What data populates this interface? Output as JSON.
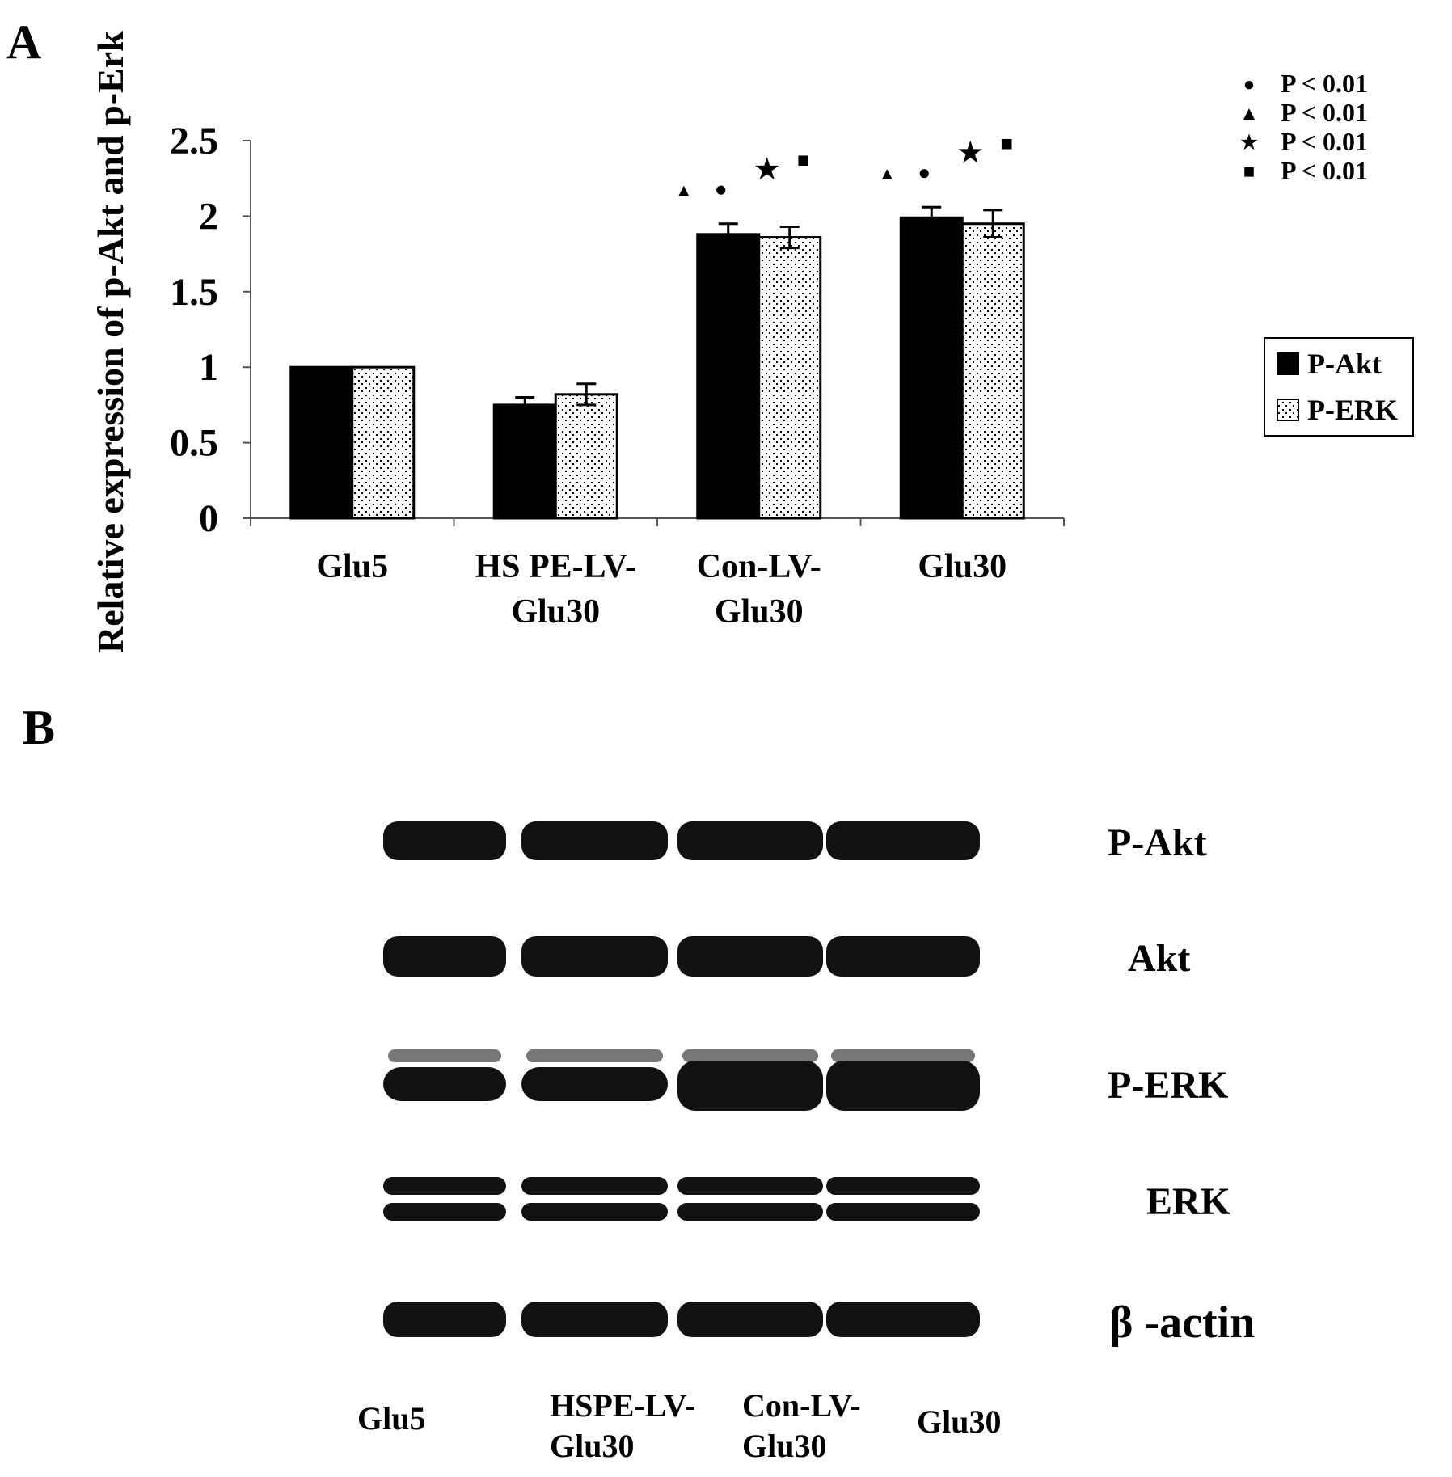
{
  "panels": {
    "a": "A",
    "b": "B"
  },
  "chart_data": {
    "type": "bar",
    "ylabel": "Relative expression of p-Akt and p-Erk",
    "ylim": [
      0,
      2.5
    ],
    "yticks": [
      "0",
      "0.5",
      "1",
      "1.5",
      "2",
      "2.5"
    ],
    "categories": [
      [
        "Glu5"
      ],
      [
        "HS PE-LV-",
        "Glu30"
      ],
      [
        "Con-LV-",
        "Glu30"
      ],
      [
        "Glu30"
      ]
    ],
    "series": [
      {
        "name": "P-Akt",
        "values": [
          1.0,
          0.75,
          1.88,
          1.99
        ],
        "errors": [
          0,
          0.05,
          0.07,
          0.07
        ],
        "fill": "#000000"
      },
      {
        "name": "P-ERK",
        "values": [
          1.0,
          0.82,
          1.86,
          1.95
        ],
        "errors": [
          0,
          0.07,
          0.07,
          0.09
        ],
        "fill": "dots"
      }
    ],
    "significance_marks": [
      {
        "category": 2,
        "symbols": [
          "▲",
          "●",
          "★",
          "■"
        ]
      },
      {
        "category": 3,
        "symbols": [
          "▲",
          "●",
          "★",
          "■"
        ]
      }
    ],
    "significance_legend": [
      {
        "symbol": "●",
        "text": "P < 0.01"
      },
      {
        "symbol": "▲",
        "text": "P < 0.01"
      },
      {
        "symbol": "★",
        "text": "P < 0.01"
      },
      {
        "symbol": "■",
        "text": "P < 0.01"
      }
    ],
    "legend_position": "right"
  },
  "blot": {
    "rows": [
      "P-Akt",
      "Akt",
      "P-ERK",
      "ERK",
      "β  -actin"
    ],
    "lanes": [
      [
        "Glu5"
      ],
      [
        "HSPE-LV-",
        "Glu30"
      ],
      [
        "Con-LV-",
        "Glu30"
      ],
      [
        "Glu30"
      ]
    ],
    "colors": {
      "band": "#111111",
      "background": "#ffffff"
    }
  }
}
